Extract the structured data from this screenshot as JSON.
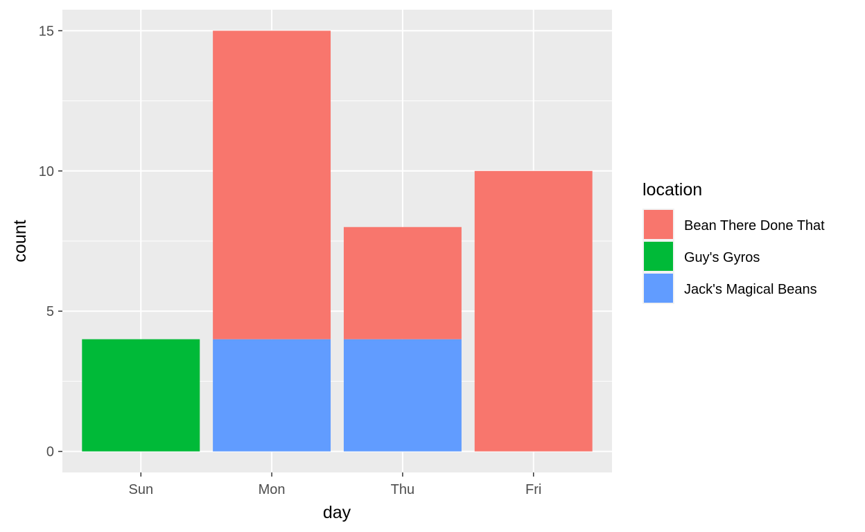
{
  "chart_data": {
    "type": "bar",
    "stacked": true,
    "categories": [
      "Sun",
      "Mon",
      "Thu",
      "Fri"
    ],
    "series": [
      {
        "name": "Bean There Done That",
        "color": "#F8766D",
        "values": [
          0,
          11,
          4,
          10
        ]
      },
      {
        "name": "Guy's Gyros",
        "color": "#00BA38",
        "values": [
          4,
          0,
          0,
          0
        ]
      },
      {
        "name": "Jack's Magical Beans",
        "color": "#619CFF",
        "values": [
          0,
          4,
          4,
          0
        ]
      }
    ],
    "stack_order_bottom_to_top": [
      "Jack's Magical Beans",
      "Guy's Gyros",
      "Bean There Done That"
    ],
    "xlabel": "day",
    "ylabel": "count",
    "ylim": [
      -0.75,
      15.75
    ],
    "y_ticks": [
      "0",
      "5",
      "10",
      "15"
    ],
    "legend": {
      "title": "location",
      "position": "right"
    },
    "grid": true,
    "panel_background": "#EBEBEB",
    "grid_color": "#FFFFFF"
  }
}
